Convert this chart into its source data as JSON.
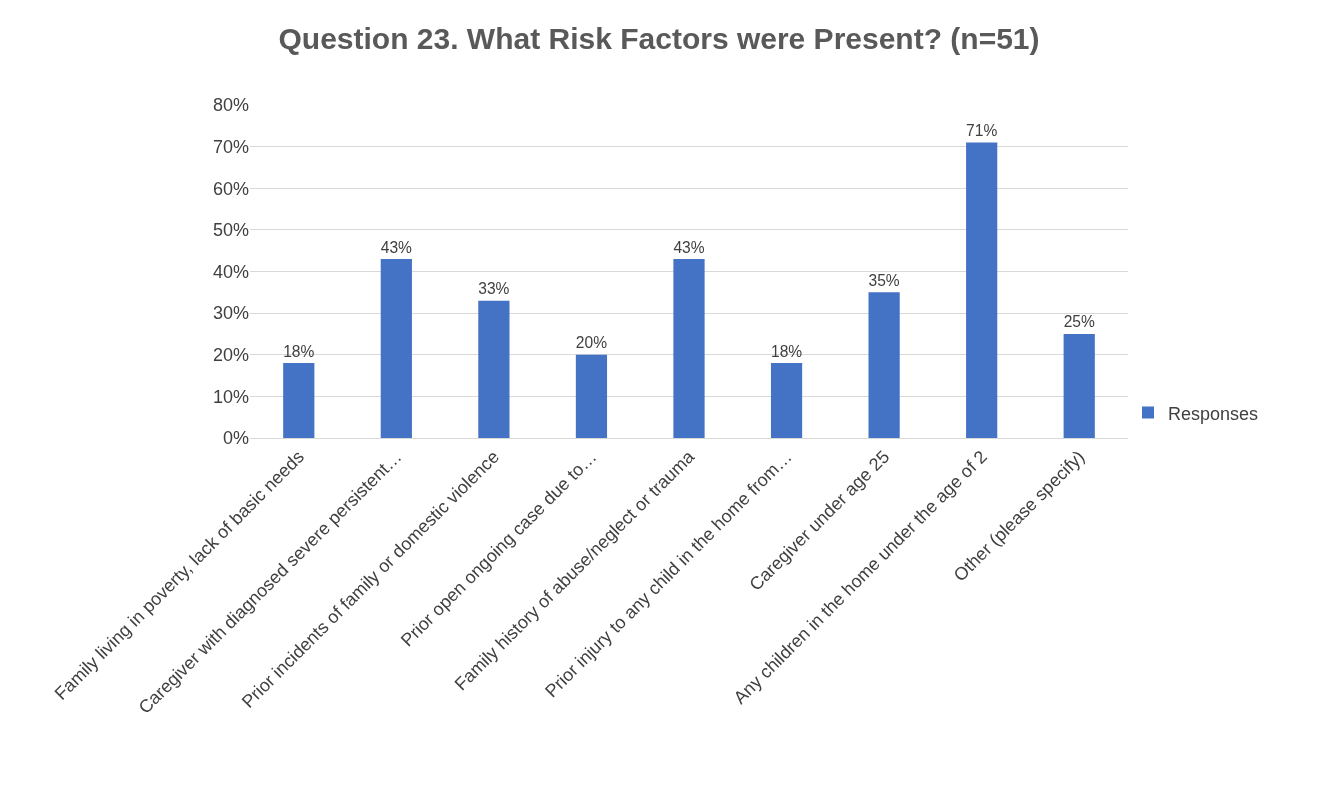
{
  "chart_data": {
    "type": "bar",
    "title": "Question 23. What Risk Factors were Present? (n=51)",
    "categories": [
      "Family living in poverty, lack of basic needs",
      "Caregiver with diagnosed severe persistent…",
      "Prior incidents of family or domestic violence",
      "Prior open ongoing case due to…",
      "Family history of abuse/neglect or trauma",
      "Prior injury to any child in the home from…",
      "Caregiver under age 25",
      "Any children in the home under the age of 2",
      "Other (please specify)"
    ],
    "series": [
      {
        "name": "Responses",
        "color": "#4472c4",
        "values": [
          18,
          43,
          33,
          20,
          43,
          18,
          35,
          71,
          25
        ],
        "value_labels": [
          "18%",
          "43%",
          "33%",
          "20%",
          "43%",
          "18%",
          "35%",
          "71%",
          "25%"
        ]
      }
    ],
    "ylim": [
      0,
      80
    ],
    "yticks": [
      {
        "value": 0,
        "label": "0%"
      },
      {
        "value": 10,
        "label": "10%"
      },
      {
        "value": 20,
        "label": "20%"
      },
      {
        "value": 30,
        "label": "30%"
      },
      {
        "value": 40,
        "label": "40%"
      },
      {
        "value": 50,
        "label": "50%"
      },
      {
        "value": 60,
        "label": "60%"
      },
      {
        "value": 70,
        "label": "70%"
      },
      {
        "value": 80,
        "label": "80%"
      }
    ],
    "grid": "y",
    "legend": "right"
  }
}
